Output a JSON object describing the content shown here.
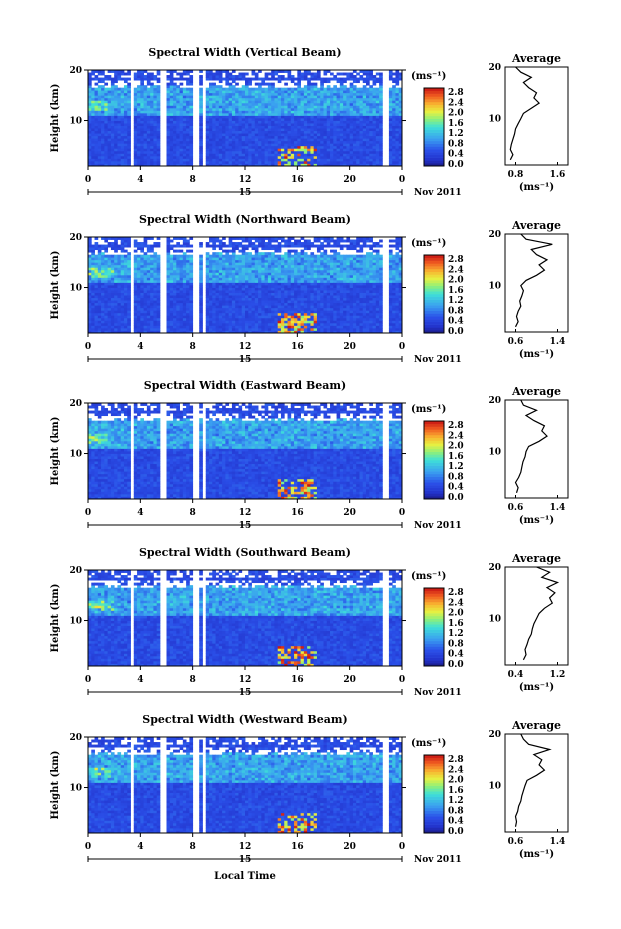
{
  "figure": {
    "xlabel": "Local Time",
    "date_label": "Nov 2011",
    "date_day": "15",
    "avg_title": "Average",
    "colorbar_unit": "(ms⁻¹)",
    "colorbar_ticks": [
      "0.0",
      "0.4",
      "0.8",
      "1.2",
      "1.6",
      "2.0",
      "2.4",
      "2.8"
    ],
    "x_ticks": [
      "0",
      "4",
      "8",
      "12",
      "16",
      "20",
      "0"
    ],
    "y_label": "Height (km)",
    "y_ticks": [
      "20",
      "10"
    ],
    "avg_unit": "(ms⁻¹)"
  },
  "colors": {
    "low": "#2a3bd6",
    "gap": "#ffffff",
    "high": "#d21e14"
  },
  "chart_data": [
    {
      "type": "heatmap",
      "title": "Spectral Width (Vertical Beam)",
      "xlabel": "Local Time",
      "ylabel": "Height (km)",
      "xlim": [
        0,
        24
      ],
      "ylim": [
        1,
        20
      ],
      "zlim": [
        0.0,
        2.8
      ],
      "avg_profile": {
        "xlim_labels": [
          "0.8",
          "1.6"
        ],
        "xlim": [
          0.6,
          1.8
        ],
        "height": [
          2,
          3,
          4,
          5,
          6,
          7,
          8,
          9,
          10,
          11,
          12,
          13,
          14,
          15,
          16,
          17,
          18,
          19,
          20
        ],
        "value": [
          0.7,
          0.75,
          0.7,
          0.72,
          0.75,
          0.78,
          0.8,
          0.85,
          0.9,
          0.95,
          1.1,
          1.25,
          1.15,
          1.2,
          1.05,
          0.95,
          1.1,
          0.9,
          0.8
        ]
      }
    },
    {
      "type": "heatmap",
      "title": "Spectral Width (Northward Beam)",
      "xlabel": "Local Time",
      "ylabel": "Height (km)",
      "xlim": [
        0,
        24
      ],
      "ylim": [
        1,
        20
      ],
      "zlim": [
        0.0,
        2.8
      ],
      "avg_profile": {
        "xlim_labels": [
          "0.6",
          "1.4"
        ],
        "xlim": [
          0.4,
          1.6
        ],
        "height": [
          2,
          3,
          4,
          5,
          6,
          7,
          8,
          9,
          10,
          11,
          12,
          13,
          14,
          15,
          16,
          17,
          18,
          19,
          20
        ],
        "value": [
          0.6,
          0.65,
          0.62,
          0.65,
          0.7,
          0.68,
          0.72,
          0.75,
          0.7,
          0.8,
          1.0,
          1.15,
          1.05,
          1.2,
          1.0,
          0.9,
          1.3,
          0.8,
          0.7
        ]
      }
    },
    {
      "type": "heatmap",
      "title": "Spectral Width (Eastward Beam)",
      "xlabel": "Local Time",
      "ylabel": "Height (km)",
      "xlim": [
        0,
        24
      ],
      "ylim": [
        1,
        20
      ],
      "zlim": [
        0.0,
        2.8
      ],
      "avg_profile": {
        "xlim_labels": [
          "0.6",
          "1.4"
        ],
        "xlim": [
          0.4,
          1.6
        ],
        "height": [
          2,
          3,
          4,
          5,
          6,
          7,
          8,
          9,
          10,
          11,
          12,
          13,
          14,
          15,
          16,
          17,
          18,
          19,
          20
        ],
        "value": [
          0.62,
          0.65,
          0.6,
          0.66,
          0.7,
          0.72,
          0.74,
          0.78,
          0.8,
          0.85,
          1.05,
          1.2,
          1.1,
          1.15,
          0.95,
          0.8,
          1.0,
          0.75,
          0.7
        ]
      }
    },
    {
      "type": "heatmap",
      "title": "Spectral Width (Southward Beam)",
      "xlabel": "Local Time",
      "ylabel": "Height (km)",
      "xlim": [
        0,
        24
      ],
      "ylim": [
        1,
        20
      ],
      "zlim": [
        0.0,
        2.8
      ],
      "avg_profile": {
        "xlim_labels": [
          "0.4",
          "1.2"
        ],
        "xlim": [
          0.2,
          1.4
        ],
        "height": [
          2,
          3,
          4,
          5,
          6,
          7,
          8,
          9,
          10,
          11,
          12,
          13,
          14,
          15,
          16,
          17,
          18,
          19,
          20
        ],
        "value": [
          0.55,
          0.6,
          0.58,
          0.62,
          0.65,
          0.7,
          0.72,
          0.75,
          0.8,
          0.85,
          0.95,
          1.1,
          1.05,
          1.15,
          1.0,
          1.2,
          0.9,
          1.05,
          0.8
        ]
      }
    },
    {
      "type": "heatmap",
      "title": "Spectral Width (Westward Beam)",
      "xlabel": "Local Time",
      "ylabel": "Height (km)",
      "xlim": [
        0,
        24
      ],
      "ylim": [
        1,
        20
      ],
      "zlim": [
        0.0,
        2.8
      ],
      "avg_profile": {
        "xlim_labels": [
          "0.6",
          "1.4"
        ],
        "xlim": [
          0.4,
          1.6
        ],
        "height": [
          2,
          3,
          4,
          5,
          6,
          7,
          8,
          9,
          10,
          11,
          12,
          13,
          14,
          15,
          16,
          17,
          18,
          19,
          20
        ],
        "value": [
          0.6,
          0.62,
          0.6,
          0.64,
          0.66,
          0.7,
          0.72,
          0.75,
          0.78,
          0.82,
          1.0,
          1.15,
          1.05,
          1.1,
          0.95,
          1.25,
          0.85,
          0.75,
          0.7
        ]
      }
    }
  ]
}
